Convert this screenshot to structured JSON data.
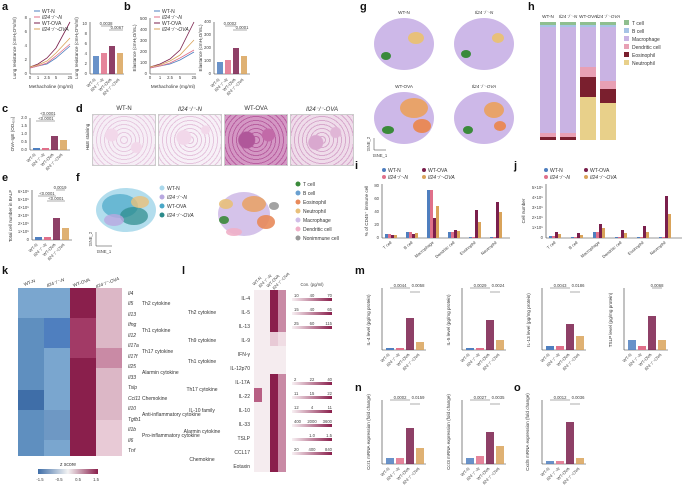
{
  "panels": {
    "a": "a",
    "b": "b",
    "c": "c",
    "d": "d",
    "e": "e",
    "f": "f",
    "g": "g",
    "h": "h",
    "i": "i",
    "j": "j",
    "k": "k",
    "l": "l",
    "m": "m",
    "n": "n",
    "o": "o"
  },
  "groups": {
    "wt_n": "WT-N",
    "il24_n": "Il24⁻/⁻-N",
    "wt_ova": "WT-OVA",
    "il24_ova": "Il24⁻/⁻-OVA"
  },
  "colors": {
    "wt_n": "#4f7fbf",
    "il24_n": "#e0708a",
    "wt_ova": "#7a1f4c",
    "il24_ova": "#d9a35a"
  },
  "panel_a": {
    "ylabel": "Lung resistance (cmH₂O*s/ml)",
    "xlabel": "Methacholine (mg/ml)",
    "x_ticks": [
      "0",
      "1",
      "2.5",
      "5",
      "25"
    ],
    "y_ticks": [
      "0",
      "2",
      "4",
      "6",
      "8"
    ],
    "bar_ylabel": "Lung resistance (cmH₂O*s/ml)",
    "bar_y_ticks": [
      "0",
      "2",
      "4",
      "6",
      "8",
      "10"
    ],
    "p_values": [
      "0.0038",
      "0.0067"
    ]
  },
  "panel_b": {
    "ylabel": "Elastance (cmH₂O/mL)",
    "xlabel": "Methacholine (mg/ml)",
    "x_ticks": [
      "0",
      "1",
      "2.5",
      "5",
      "25"
    ],
    "y_ticks": [
      "0",
      "100",
      "200",
      "300",
      "400",
      "500"
    ],
    "bar_ylabel": "Elastance (cmH₂O/mL)",
    "bar_y_ticks": [
      "0",
      "100",
      "200",
      "300",
      "400"
    ],
    "p_values": [
      "0.0002",
      "0.0001"
    ]
  },
  "panel_c": {
    "ylabel": "OVA-IgE (OD₄₅₀)",
    "y_ticks": [
      "0.0",
      "0.5",
      "1.0",
      "1.5",
      "2.0"
    ],
    "p_values": [
      "<0.0001",
      "<0.0001"
    ]
  },
  "panel_d": {
    "side_label": "H&E staining",
    "titles": [
      "WT-N",
      "Il24⁻/⁻-N",
      "WT-OVA",
      "Il24⁻/⁻-OVA"
    ]
  },
  "panel_e": {
    "ylabel": "Total cell number in BALF",
    "y_ticks": [
      "0",
      "1×10⁵",
      "2×10⁵",
      "3×10⁵",
      "4×10⁵",
      "5×10⁵",
      "6×10⁵"
    ],
    "p_values": [
      "0.0019",
      "<0.0001",
      "<0.0001"
    ]
  },
  "panel_f": {
    "legend_groups": [
      "WT-N",
      "Il24⁻/⁻-N",
      "WT-OVA",
      "Il24⁻/⁻-OVA"
    ],
    "legend_cells": [
      "T cell",
      "B cell",
      "Eosinophil",
      "Neutrophil",
      "Macrophage",
      "Dendritic cell",
      "Nonimmune cell"
    ],
    "xlabel": "tSNE_1",
    "ylabel": "tSNE_2"
  },
  "panel_g": {
    "titles": [
      "WT-N",
      "Il24⁻/⁻-N",
      "WT-OVA",
      "Il24⁻/⁻-OVA"
    ],
    "xlabel": "tSNE_1",
    "ylabel": "tSNE_2"
  },
  "panel_h": {
    "columns": [
      "WT-N",
      "Il24⁻/⁻-N",
      "WT-OVA",
      "Il24⁻/⁻-OVA"
    ],
    "legend": [
      "T cell",
      "B cell",
      "Macrophage",
      "Dendritic cell",
      "Eosinophil",
      "Neutrophil"
    ],
    "legend_colors": [
      "#8fbf8f",
      "#a7c4e6",
      "#c9b3e3",
      "#e8a0b4",
      "#7a1f2e",
      "#e8d08a"
    ]
  },
  "panel_i": {
    "ylabel": "% of CD45⁺ immune cell",
    "y_ticks": [
      "0",
      "20",
      "40",
      "60",
      "80"
    ],
    "categories": [
      "T cell",
      "B cell",
      "Macrophage",
      "Dendritic cell",
      "Eosinophil",
      "Neutrophil"
    ]
  },
  "panel_j": {
    "ylabel": "Cell number",
    "y_ticks": [
      "0",
      "1×10⁵",
      "2×10⁵",
      "3×10⁵",
      "4×10⁵",
      "5×10⁵"
    ],
    "categories": [
      "T cell",
      "B cell",
      "Macrophage",
      "Dendritic cell",
      "Eosinophil",
      "Neutrophil"
    ]
  },
  "panel_k": {
    "columns": [
      "WT-N",
      "Il24⁻/⁻-N",
      "WT-OVA",
      "Il24⁻/⁻-OVA"
    ],
    "genes": [
      "Il4",
      "Il5",
      "Il13",
      "Ifng",
      "Il12",
      "Il17a",
      "Il17f",
      "Il25",
      "Il33",
      "Tslp",
      "Ccl11",
      "Il10",
      "Tgfb1",
      "Il1b",
      "Il6",
      "Tnf"
    ],
    "groups": [
      "Th2 cytokine",
      "Th1 cytokine",
      "Th17 cytokine",
      "Alarmin cytokine",
      "Chemokine",
      "Anti-inflammatory cytokine",
      "Pro-inflammatory cytokine"
    ],
    "scale_label": "z score",
    "scale_ticks": [
      "-1.5",
      "-0.5",
      "0.5",
      "1.5"
    ]
  },
  "panel_l": {
    "columns": [
      "WT-N",
      "Il24⁻/⁻-N",
      "WT-OVA",
      "Il24⁻/⁻-OVA"
    ],
    "rows": [
      "IL-4",
      "IL-5",
      "IL-13",
      "IL-9",
      "IFN-γ",
      "IL-12p70",
      "IL-17A",
      "IL-22",
      "IL-10",
      "IL-33",
      "TSLP",
      "CCL17",
      "Eotaxin"
    ],
    "row_groups": [
      "Th2 cytokine",
      "Th9 cytokine",
      "Th1 cytokine",
      "Th17 cytokine",
      "IL-10 family",
      "Alarmin cytokine",
      "Chemokine"
    ],
    "conc_header": "Con. (pg/ml)",
    "scales": [
      [
        "10",
        "40",
        "70"
      ],
      [
        "15",
        "40",
        "65"
      ],
      [
        "25",
        "60",
        "115"
      ],
      [
        "",
        "",
        ""
      ],
      [
        "",
        "",
        ""
      ],
      [
        "",
        "",
        ""
      ],
      [
        "2",
        "22",
        "40"
      ],
      [
        "11",
        "15",
        "22"
      ],
      [
        "12",
        "4",
        "11"
      ],
      [
        "400",
        "2000",
        "3600"
      ],
      [
        "",
        "1.0",
        "1.5"
      ],
      [
        "20",
        "400",
        "840"
      ],
      [
        "",
        "",
        ""
      ]
    ]
  },
  "panel_m": {
    "titles": [
      "IL-4 level (pg/mg protein)",
      "IL-5 level (pg/mg protein)",
      "IL-13 level (pg/mg protein)",
      "TSLP level (pg/mg protein)"
    ],
    "p_values": [
      [
        "0.0044",
        "0.0058"
      ],
      [
        "0.0029",
        "0.0024"
      ],
      [
        "0.0043",
        "0.0186"
      ],
      [
        "0.0068"
      ]
    ]
  },
  "panel_n": {
    "titles": [
      "Ccr1 mRNA expression (fold change)",
      "Ccr3 mRNA expression (fold change)"
    ],
    "p_values": [
      [
        "0.0002",
        "0.0159"
      ],
      [
        "0.0027",
        "0.0035"
      ]
    ]
  },
  "panel_o": {
    "title": "Cxcl5 mRNA expression (fold change)",
    "p_values": [
      "0.0012",
      "0.0036"
    ]
  }
}
